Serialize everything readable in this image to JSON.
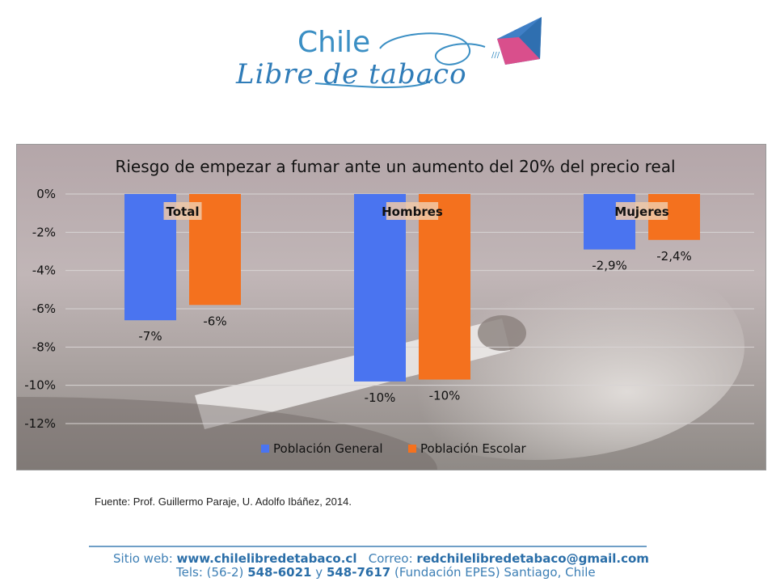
{
  "logo": {
    "line1": "Chile",
    "line2": "Libre de tabaco"
  },
  "colors": {
    "general": "#4a74f0",
    "escolar": "#f4711e",
    "logo_blue": "#3b8fc4"
  },
  "chart_data": {
    "type": "bar",
    "title": "Riesgo de empezar a fumar ante un aumento del 20% del precio real",
    "categories": [
      "Total",
      "Hombres",
      "Mujeres"
    ],
    "series": [
      {
        "name": "Población General",
        "values": [
          -6.6,
          -9.8,
          -2.9
        ],
        "labels": [
          "-7%",
          "-10%",
          "-2,9%"
        ]
      },
      {
        "name": "Población Escolar",
        "values": [
          -5.8,
          -9.7,
          -2.4
        ],
        "labels": [
          "-6%",
          "-10%",
          "-2,4%"
        ]
      }
    ],
    "ylim": [
      -12,
      0
    ],
    "yticks": [
      0,
      -2,
      -4,
      -6,
      -8,
      -10,
      -12
    ],
    "ytick_labels": [
      "0%",
      "-2%",
      "-4%",
      "-6%",
      "-8%",
      "-10%",
      "-12%"
    ],
    "grid": true,
    "legend": "bottom"
  },
  "source": "Fuente: Prof. Guillermo Paraje, U. Adolfo Ibáñez, 2014.",
  "footer": {
    "web_label": "Sitio web:",
    "web": "www.chilelibredetabaco.cl",
    "mail_label": "Correo:",
    "mail": "redchilelibredetabaco@gmail.com",
    "tels_label": "Tels: (56-2)",
    "tel1": "548-6021",
    "y": "y",
    "tel2": "548-7617",
    "org": "(Fundación EPES) Santiago, Chile"
  }
}
